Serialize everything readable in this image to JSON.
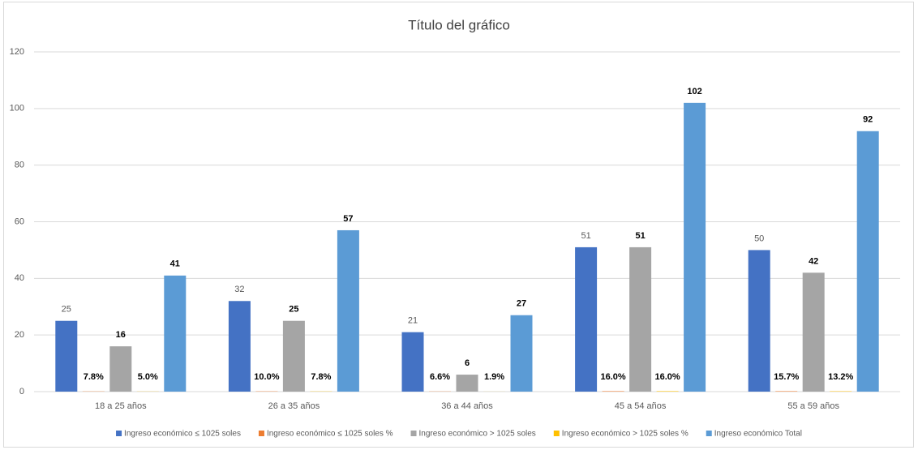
{
  "chart_data": {
    "type": "bar",
    "title": "Título del gráfico",
    "categories": [
      "18 a 25 años",
      "26 a 35 años",
      "36 a 44 años",
      "45 a 54 años",
      "55 a 59 años"
    ],
    "series": [
      {
        "name": "Ingreso económico ≤ 1025 soles",
        "color": "#4472c4",
        "values": [
          25,
          32,
          21,
          51,
          50
        ]
      },
      {
        "name": "Ingreso económico ≤ 1025 soles %",
        "color": "#ed7d31",
        "values": [
          0.078,
          0.1,
          0.066,
          0.16,
          0.157
        ],
        "value_labels": [
          "7.8%",
          "10.0%",
          "6.6%",
          "16.0%",
          "15.7%"
        ]
      },
      {
        "name": "Ingreso económico > 1025 soles",
        "color": "#a5a5a5",
        "values": [
          16,
          25,
          6,
          51,
          42
        ]
      },
      {
        "name": "Ingreso económico > 1025 soles %",
        "color": "#ffc000",
        "values": [
          0.05,
          0.078,
          0.019,
          0.16,
          0.132
        ],
        "value_labels": [
          "5.0%",
          "7.8%",
          "1.9%",
          "16.0%",
          "13.2%"
        ]
      },
      {
        "name": "Ingreso económico Total",
        "color": "#5b9bd5",
        "values": [
          41,
          57,
          27,
          102,
          92
        ]
      }
    ],
    "ylim": [
      0,
      120
    ],
    "yticks": [
      0,
      20,
      40,
      60,
      80,
      100,
      120
    ],
    "grid": true,
    "legend": "bottom"
  }
}
